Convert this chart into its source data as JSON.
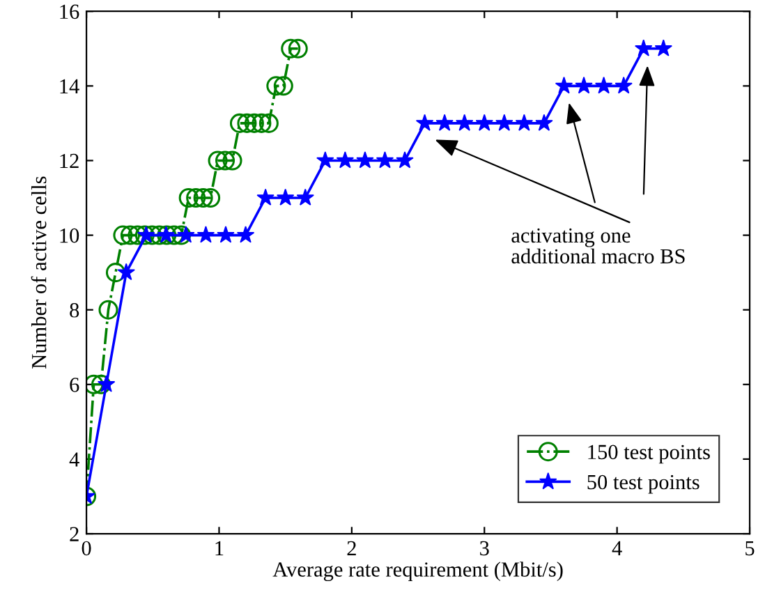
{
  "chart_data": {
    "type": "line",
    "xlabel": "Average rate requirement (Mbit/s)",
    "ylabel": "Number of active cells",
    "series": [
      {
        "name": "150 test points",
        "color": "#008000",
        "marker": "circle",
        "line_style": "dashdot",
        "x": [
          0,
          0.055,
          0.11,
          0.165,
          0.22,
          0.275,
          0.33,
          0.385,
          0.44,
          0.495,
          0.55,
          0.605,
          0.66,
          0.715,
          0.77,
          0.825,
          0.88,
          0.935,
          0.99,
          1.045,
          1.1,
          1.155,
          1.21,
          1.265,
          1.32,
          1.375,
          1.43,
          1.485,
          1.54,
          1.595
        ],
        "values": [
          3,
          6,
          6,
          8,
          9,
          10,
          10,
          10,
          10,
          10,
          10,
          10,
          10,
          10,
          11,
          11,
          11,
          11,
          12,
          12,
          12,
          13,
          13,
          13,
          13,
          13,
          14,
          14,
          15,
          15
        ]
      },
      {
        "name": "50 test points",
        "color": "#0000ff",
        "marker": "star",
        "line_style": "solid",
        "x": [
          0,
          0.15,
          0.3,
          0.45,
          0.6,
          0.75,
          0.9,
          1.05,
          1.2,
          1.35,
          1.5,
          1.65,
          1.8,
          1.95,
          2.1,
          2.25,
          2.4,
          2.55,
          2.7,
          2.85,
          3.0,
          3.15,
          3.3,
          3.45,
          3.6,
          3.75,
          3.9,
          4.05,
          4.2,
          4.35
        ],
        "values": [
          3,
          6,
          9,
          10,
          10,
          10,
          10,
          10,
          10,
          11,
          11,
          11,
          12,
          12,
          12,
          12,
          12,
          13,
          13,
          13,
          13,
          13,
          13,
          13,
          14,
          14,
          14,
          14,
          15,
          15
        ]
      }
    ],
    "xlim": [
      0,
      5
    ],
    "xticks": [
      0,
      1,
      2,
      3,
      4,
      5
    ],
    "ylim": [
      2,
      16
    ],
    "yticks": [
      2,
      4,
      6,
      8,
      10,
      12,
      14,
      16
    ],
    "annotations": [
      "activating one\nadditional macro BS"
    ],
    "legend": "bottom right",
    "grid": false
  }
}
